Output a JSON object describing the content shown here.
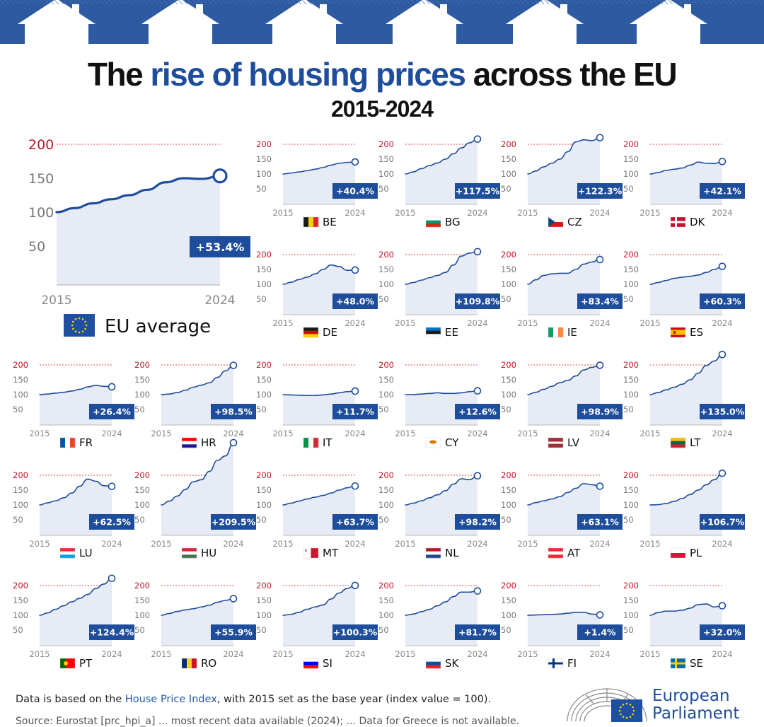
{
  "title": {
    "part1": "The ",
    "highlight": "rise of housing prices",
    "part2": " across the EU",
    "years": "2015-2024"
  },
  "colors": {
    "line": "#1e4d9b",
    "fill": "#e6ebf5",
    "badge": "#1e4d9b",
    "axis_label": "#c0182a",
    "grid_200": "#d94a4a",
    "banner": "#2d5aa0",
    "tick": "#777777"
  },
  "chart_data": {
    "type": "line",
    "title": "The rise of housing prices across the EU 2015-2024",
    "x": [
      2015,
      2016,
      2017,
      2018,
      2019,
      2020,
      2021,
      2022,
      2023,
      2024
    ],
    "ylim": [
      0,
      200
    ],
    "yticks": [
      50,
      100,
      150,
      200
    ],
    "xtick_labels": [
      "2015",
      "2024"
    ],
    "base_year_value": 100,
    "eu_average": {
      "label": "EU average",
      "change": "+53.4%",
      "values": [
        100,
        106,
        113,
        119,
        125,
        133,
        144,
        150,
        149,
        153.4
      ]
    },
    "countries": [
      {
        "code": "BE",
        "change": "+40.4%",
        "values": [
          100,
          103,
          107,
          111,
          116,
          122,
          130,
          136,
          139,
          140.4
        ]
      },
      {
        "code": "BG",
        "change": "+117.5%",
        "values": [
          100,
          107,
          118,
          128,
          137,
          150,
          168,
          188,
          205,
          217.5
        ]
      },
      {
        "code": "CZ",
        "change": "+122.3%",
        "values": [
          100,
          110,
          124,
          136,
          150,
          175,
          208,
          215,
          212,
          222.3
        ]
      },
      {
        "code": "DK",
        "change": "+42.1%",
        "values": [
          100,
          105,
          112,
          116,
          120,
          130,
          140,
          136,
          135,
          142.1
        ]
      },
      {
        "code": "DE",
        "change": "+48.0%",
        "values": [
          100,
          107,
          116,
          124,
          135,
          150,
          165,
          160,
          147,
          148.0
        ]
      },
      {
        "code": "EE",
        "change": "+109.8%",
        "values": [
          100,
          106,
          114,
          122,
          130,
          140,
          165,
          195,
          205,
          209.8
        ]
      },
      {
        "code": "IE",
        "change": "+83.4%",
        "values": [
          100,
          115,
          130,
          135,
          137,
          137,
          150,
          168,
          175,
          183.4
        ]
      },
      {
        "code": "ES",
        "change": "+60.3%",
        "values": [
          100,
          106,
          113,
          120,
          124,
          127,
          131,
          140,
          150,
          160.3
        ]
      },
      {
        "code": "FR",
        "change": "+26.4%",
        "values": [
          100,
          102,
          105,
          108,
          112,
          118,
          126,
          131,
          128,
          126.4
        ]
      },
      {
        "code": "HR",
        "change": "+98.5%",
        "values": [
          100,
          102,
          107,
          115,
          125,
          132,
          140,
          158,
          180,
          198.5
        ]
      },
      {
        "code": "IT",
        "change": "+11.7%",
        "values": [
          100,
          99,
          98,
          97,
          97,
          99,
          102,
          106,
          110,
          111.7
        ]
      },
      {
        "code": "CY",
        "change": "+12.6%",
        "values": [
          100,
          100,
          102,
          104,
          106,
          104,
          104,
          106,
          110,
          112.6
        ]
      },
      {
        "code": "LV",
        "change": "+98.9%",
        "values": [
          100,
          108,
          118,
          128,
          140,
          148,
          163,
          183,
          192,
          198.9
        ]
      },
      {
        "code": "LT",
        "change": "+135.0%",
        "values": [
          100,
          107,
          116,
          125,
          135,
          150,
          172,
          198,
          213,
          235.0
        ]
      },
      {
        "code": "LU",
        "change": "+62.5%",
        "values": [
          100,
          107,
          114,
          124,
          140,
          163,
          187,
          180,
          165,
          162.5
        ]
      },
      {
        "code": "HU",
        "change": "+209.5%",
        "values": [
          100,
          113,
          130,
          152,
          178,
          185,
          213,
          250,
          265,
          309.5
        ]
      },
      {
        "code": "MT",
        "change": "+63.7%",
        "values": [
          100,
          106,
          113,
          120,
          126,
          132,
          140,
          150,
          158,
          163.7
        ]
      },
      {
        "code": "NL",
        "change": "+98.2%",
        "values": [
          100,
          106,
          114,
          124,
          134,
          148,
          170,
          188,
          185,
          198.2
        ]
      },
      {
        "code": "AT",
        "change": "+63.1%",
        "values": [
          100,
          108,
          114,
          120,
          128,
          142,
          156,
          172,
          168,
          163.1
        ]
      },
      {
        "code": "PL",
        "change": "+106.7%",
        "values": [
          100,
          101,
          105,
          112,
          122,
          135,
          150,
          168,
          185,
          206.7
        ]
      },
      {
        "code": "PT",
        "change": "+124.4%",
        "values": [
          100,
          108,
          120,
          132,
          145,
          157,
          170,
          190,
          205,
          224.4
        ]
      },
      {
        "code": "RO",
        "change": "+55.9%",
        "values": [
          100,
          106,
          113,
          118,
          122,
          128,
          134,
          144,
          150,
          155.9
        ]
      },
      {
        "code": "SI",
        "change": "+100.3%",
        "values": [
          100,
          103,
          110,
          120,
          128,
          135,
          155,
          175,
          190,
          200.3
        ]
      },
      {
        "code": "SK",
        "change": "+81.7%",
        "values": [
          100,
          104,
          112,
          120,
          132,
          145,
          163,
          178,
          178,
          181.7
        ]
      },
      {
        "code": "FI",
        "change": "+1.4%",
        "values": [
          100,
          101,
          102,
          103,
          104,
          107,
          110,
          110,
          104,
          101.4
        ]
      },
      {
        "code": "SE",
        "change": "+32.0%",
        "values": [
          100,
          109,
          114,
          114,
          117,
          124,
          136,
          138,
          128,
          132.0
        ]
      }
    ]
  },
  "flags": {
    "BE": {
      "t": "v",
      "c": [
        "#1a1a1a",
        "#f5d000",
        "#d8232a"
      ]
    },
    "BG": {
      "t": "h",
      "c": [
        "#ffffff",
        "#00966e",
        "#d62612"
      ]
    },
    "CZ": {
      "t": "cz",
      "c": [
        "#ffffff",
        "#d7141a",
        "#11457e"
      ]
    },
    "DK": {
      "t": "nordic",
      "c": [
        "#c8102e",
        "#ffffff"
      ]
    },
    "DE": {
      "t": "h",
      "c": [
        "#1a1a1a",
        "#dd0000",
        "#ffce00"
      ]
    },
    "EE": {
      "t": "h",
      "c": [
        "#0072ce",
        "#1a1a1a",
        "#ffffff"
      ]
    },
    "IE": {
      "t": "v",
      "c": [
        "#169b62",
        "#ffffff",
        "#ff883e"
      ]
    },
    "ES": {
      "t": "es",
      "c": [
        "#c60b1e",
        "#ffc400"
      ]
    },
    "FR": {
      "t": "v",
      "c": [
        "#0055a4",
        "#ffffff",
        "#ef4135"
      ]
    },
    "HR": {
      "t": "h",
      "c": [
        "#ff0000",
        "#ffffff",
        "#171796"
      ]
    },
    "IT": {
      "t": "v",
      "c": [
        "#009246",
        "#ffffff",
        "#ce2b37"
      ]
    },
    "CY": {
      "t": "cy",
      "c": [
        "#ffffff",
        "#d57800"
      ]
    },
    "LV": {
      "t": "lv",
      "c": [
        "#9e3039",
        "#ffffff"
      ]
    },
    "LT": {
      "t": "h",
      "c": [
        "#fdb913",
        "#006a44",
        "#c1272d"
      ]
    },
    "LU": {
      "t": "h",
      "c": [
        "#ed2939",
        "#ffffff",
        "#00a1de"
      ]
    },
    "HU": {
      "t": "h",
      "c": [
        "#ce2939",
        "#ffffff",
        "#477050"
      ]
    },
    "MT": {
      "t": "mt",
      "c": [
        "#ffffff",
        "#cf142b"
      ]
    },
    "NL": {
      "t": "h",
      "c": [
        "#ae1c28",
        "#ffffff",
        "#21468b"
      ]
    },
    "AT": {
      "t": "h",
      "c": [
        "#ed2939",
        "#ffffff",
        "#ed2939"
      ]
    },
    "PL": {
      "t": "h2",
      "c": [
        "#ffffff",
        "#dc143c"
      ]
    },
    "PT": {
      "t": "pt",
      "c": [
        "#006600",
        "#ff0000"
      ]
    },
    "RO": {
      "t": "v",
      "c": [
        "#002b7f",
        "#fcd116",
        "#ce1126"
      ]
    },
    "SI": {
      "t": "h",
      "c": [
        "#ffffff",
        "#0000ff",
        "#ff0000"
      ]
    },
    "SK": {
      "t": "h",
      "c": [
        "#ffffff",
        "#0b4ea2",
        "#ee1c25"
      ]
    },
    "FI": {
      "t": "nordic",
      "c": [
        "#ffffff",
        "#003580"
      ]
    },
    "SE": {
      "t": "nordic",
      "c": [
        "#006aa7",
        "#fecc00"
      ]
    }
  },
  "footer": {
    "note_prefix": "Data is based on the ",
    "note_link": "House Price Index",
    "note_suffix": ", with 2015 set as the base year (index value = 100).",
    "source": "Source: Eurostat [prc_hpi_a] ... most recent data available (2024); ... Data for Greece is not available."
  },
  "logo": {
    "line1": "European",
    "line2": "Parliament"
  }
}
